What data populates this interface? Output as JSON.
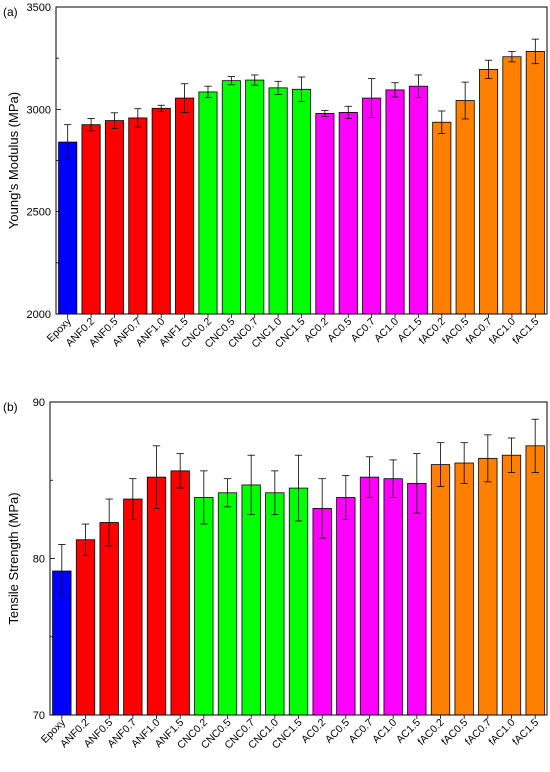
{
  "chart_data": [
    {
      "type": "bar",
      "panel_label": "(a)",
      "ylabel": "Young's Modulus (MPa)",
      "xlabel": "",
      "ylim": [
        2000,
        3500
      ],
      "yticks": [
        "2000",
        "2500",
        "3000",
        "3500"
      ],
      "categories": [
        "Epoxy",
        "ANF0.2",
        "ANF0.5",
        "ANF0.7",
        "ANF1.0",
        "ANF1.5",
        "CNC0.2",
        "CNC0.5",
        "CNC0.7",
        "CNC1.0",
        "CNC1.5",
        "AC0.2",
        "AC0.5",
        "AC0.7",
        "AC1.0",
        "AC1.5",
        "fAC0.2",
        "fAC0.5",
        "fAC0.7",
        "fAC1.0",
        "fAC1.5"
      ],
      "values": [
        2840,
        2925,
        2945,
        2958,
        3005,
        3055,
        3085,
        3140,
        3143,
        3105,
        3098,
        2980,
        2985,
        3055,
        3095,
        3113,
        2937,
        3043,
        3195,
        3257,
        3283
      ],
      "errors": [
        85,
        30,
        38,
        45,
        15,
        70,
        28,
        20,
        25,
        32,
        60,
        15,
        30,
        95,
        35,
        55,
        55,
        90,
        45,
        25,
        60
      ],
      "grid": false,
      "legend": "none"
    },
    {
      "type": "bar",
      "panel_label": "(b)",
      "ylabel": "Tensile Strength (MPa)",
      "xlabel": "",
      "ylim": [
        70,
        90
      ],
      "yticks": [
        "70",
        "80",
        "90"
      ],
      "categories": [
        "Epoxy",
        "ANF0.2",
        "ANF0.5",
        "ANF0.7",
        "ANF1.0",
        "ANF1.5",
        "CNC0.2",
        "CNC0.5",
        "CNC0.7",
        "CNC1.0",
        "CNC1.5",
        "AC0.2",
        "AC0.5",
        "AC0.7",
        "AC1.0",
        "AC1.5",
        "fAC0.2",
        "fAC0.5",
        "fAC0.7",
        "fAC1.0",
        "fAC1.5"
      ],
      "values": [
        79.2,
        81.2,
        82.3,
        83.8,
        85.2,
        85.6,
        83.9,
        84.2,
        84.7,
        84.2,
        84.5,
        83.2,
        83.9,
        85.2,
        85.1,
        84.8,
        86.0,
        86.1,
        86.4,
        86.6,
        87.2
      ],
      "errors": [
        1.7,
        1.0,
        1.5,
        1.3,
        2.0,
        1.1,
        1.7,
        0.9,
        1.9,
        1.4,
        2.1,
        1.9,
        1.4,
        1.3,
        1.2,
        1.9,
        1.4,
        1.3,
        1.5,
        1.1,
        1.7
      ],
      "grid": false,
      "legend": "none"
    }
  ],
  "bar_colors": [
    "#0000ff",
    "#ff0000",
    "#ff0000",
    "#ff0000",
    "#ff0000",
    "#ff0000",
    "#00ff00",
    "#00ff00",
    "#00ff00",
    "#00ff00",
    "#00ff00",
    "#ff00ff",
    "#ff00ff",
    "#ff00ff",
    "#ff00ff",
    "#ff00ff",
    "#ff8000",
    "#ff8000",
    "#ff8000",
    "#ff8000",
    "#ff8000"
  ]
}
